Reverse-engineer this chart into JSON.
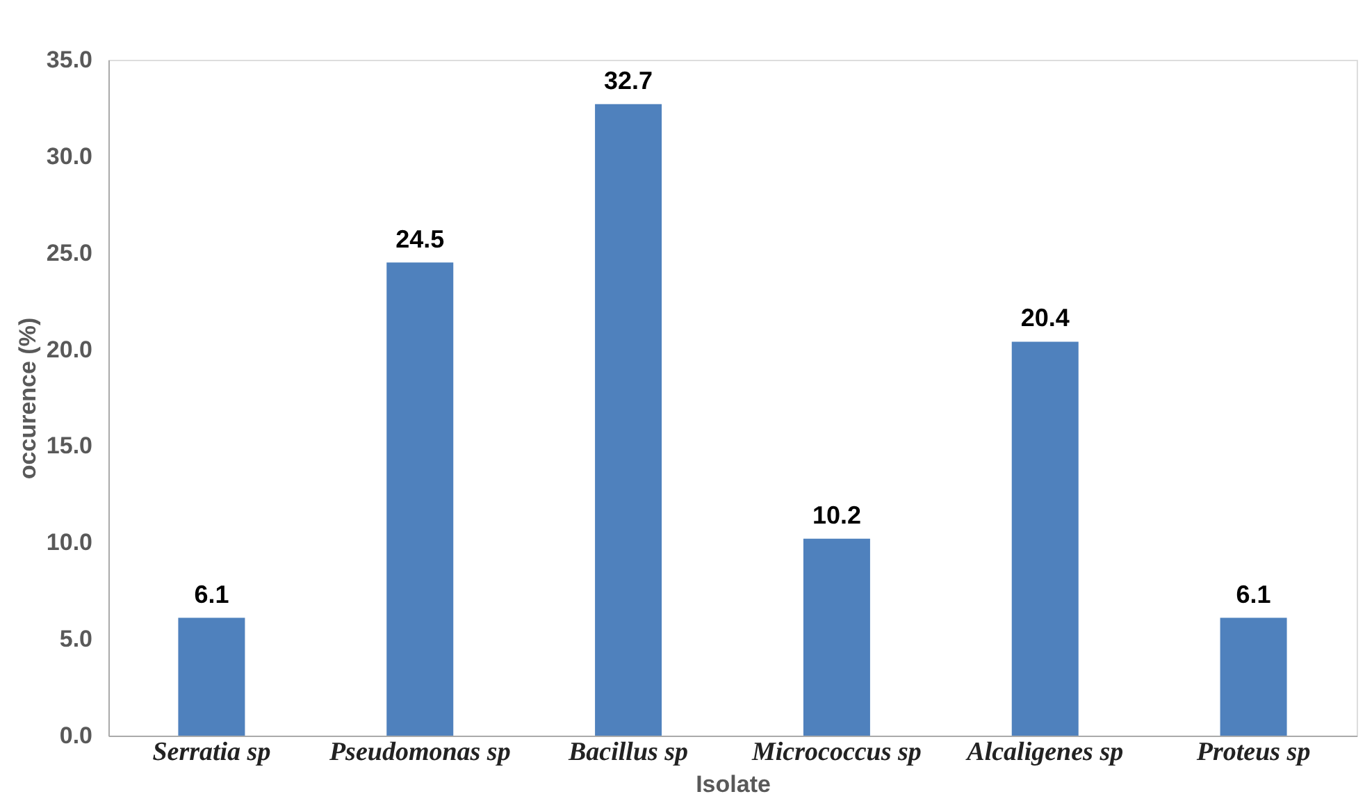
{
  "chart_data": {
    "type": "bar",
    "xlabel": "Isolate",
    "ylabel": "occurence (%)",
    "categories": [
      "Serratia sp",
      "Pseudomonas sp",
      "Bacillus sp",
      "Micrococcus sp",
      "Alcaligenes sp",
      "Proteus sp"
    ],
    "values": [
      6.1,
      24.5,
      32.7,
      10.2,
      20.4,
      6.1
    ],
    "color": "#4f81bd",
    "ylim": [
      0,
      35
    ],
    "yticks": [
      {
        "value": 0,
        "label": "0.0"
      },
      {
        "value": 5,
        "label": "5.0"
      },
      {
        "value": 10,
        "label": "10.0"
      },
      {
        "value": 15,
        "label": "15.0"
      },
      {
        "value": 20,
        "label": "20.0"
      },
      {
        "value": 25,
        "label": "25.0"
      },
      {
        "value": 30,
        "label": "30.0"
      },
      {
        "value": 35,
        "label": "35.0"
      }
    ],
    "data_labels": true,
    "grid": false
  }
}
